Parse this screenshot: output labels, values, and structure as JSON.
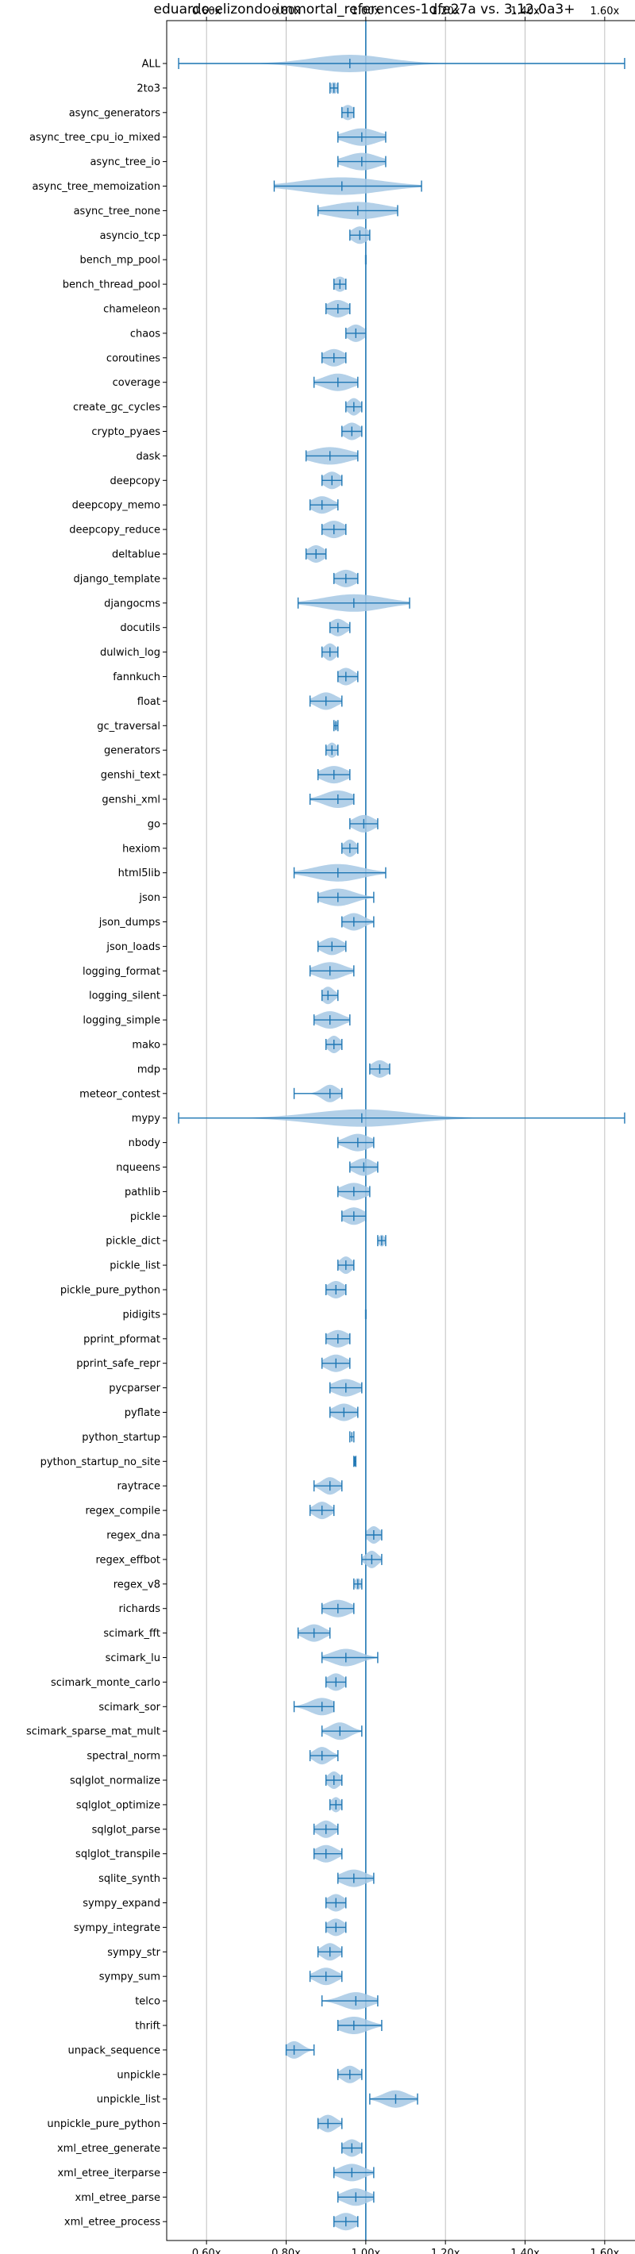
{
  "chart_data": {
    "type": "violin",
    "title": "eduardo-elizondo-immortal_references-1dfe27a vs. 3.12.0a3+",
    "xlabel": "",
    "ylabel": "",
    "xlim": [
      0.5,
      1.69
    ],
    "xticks": [
      0.6,
      0.8,
      1.0,
      1.2,
      1.4,
      1.6
    ],
    "xtick_labels": [
      "0.60x",
      "0.80x",
      "1.00x",
      "1.20x",
      "1.40x",
      "1.60x"
    ],
    "reference_line": 1.0,
    "grid": "x",
    "colors": {
      "violin": "#a6c8e4",
      "line": "#1f77b4"
    },
    "benchmarks": [
      {
        "name": "ALL",
        "min": 0.53,
        "max": 1.65,
        "median": 0.96,
        "spread": 0.05
      },
      {
        "name": "2to3",
        "min": 0.91,
        "max": 0.93,
        "median": 0.92,
        "spread": 0.01
      },
      {
        "name": "async_generators",
        "min": 0.94,
        "max": 0.97,
        "median": 0.955,
        "spread": 0.015
      },
      {
        "name": "async_tree_cpu_io_mixed",
        "min": 0.93,
        "max": 1.05,
        "median": 0.99,
        "spread": 0.04
      },
      {
        "name": "async_tree_io",
        "min": 0.93,
        "max": 1.05,
        "median": 0.99,
        "spread": 0.04
      },
      {
        "name": "async_tree_memoization",
        "min": 0.77,
        "max": 1.14,
        "median": 0.94,
        "spread": 0.1
      },
      {
        "name": "async_tree_none",
        "min": 0.88,
        "max": 1.08,
        "median": 0.98,
        "spread": 0.07
      },
      {
        "name": "asyncio_tcp",
        "min": 0.96,
        "max": 1.01,
        "median": 0.985,
        "spread": 0.02
      },
      {
        "name": "bench_mp_pool",
        "min": 1.0,
        "max": 1.0,
        "median": 1.0,
        "spread": 0.0
      },
      {
        "name": "bench_thread_pool",
        "min": 0.92,
        "max": 0.95,
        "median": 0.935,
        "spread": 0.015
      },
      {
        "name": "chameleon",
        "min": 0.9,
        "max": 0.96,
        "median": 0.93,
        "spread": 0.025
      },
      {
        "name": "chaos",
        "min": 0.95,
        "max": 1.0,
        "median": 0.975,
        "spread": 0.02
      },
      {
        "name": "coroutines",
        "min": 0.89,
        "max": 0.95,
        "median": 0.92,
        "spread": 0.025
      },
      {
        "name": "coverage",
        "min": 0.87,
        "max": 0.98,
        "median": 0.93,
        "spread": 0.035
      },
      {
        "name": "create_gc_cycles",
        "min": 0.95,
        "max": 0.99,
        "median": 0.97,
        "spread": 0.015
      },
      {
        "name": "crypto_pyaes",
        "min": 0.94,
        "max": 0.99,
        "median": 0.965,
        "spread": 0.02
      },
      {
        "name": "dask",
        "min": 0.85,
        "max": 0.98,
        "median": 0.91,
        "spread": 0.05
      },
      {
        "name": "deepcopy",
        "min": 0.89,
        "max": 0.94,
        "median": 0.915,
        "spread": 0.02
      },
      {
        "name": "deepcopy_memo",
        "min": 0.86,
        "max": 0.93,
        "median": 0.89,
        "spread": 0.025
      },
      {
        "name": "deepcopy_reduce",
        "min": 0.89,
        "max": 0.95,
        "median": 0.92,
        "spread": 0.025
      },
      {
        "name": "deltablue",
        "min": 0.85,
        "max": 0.9,
        "median": 0.875,
        "spread": 0.02
      },
      {
        "name": "django_template",
        "min": 0.92,
        "max": 0.98,
        "median": 0.95,
        "spread": 0.025
      },
      {
        "name": "djangocms",
        "min": 0.83,
        "max": 1.11,
        "median": 0.97,
        "spread": 0.075
      },
      {
        "name": "docutils",
        "min": 0.91,
        "max": 0.96,
        "median": 0.93,
        "spread": 0.02
      },
      {
        "name": "dulwich_log",
        "min": 0.89,
        "max": 0.93,
        "median": 0.91,
        "spread": 0.015
      },
      {
        "name": "fannkuch",
        "min": 0.93,
        "max": 0.98,
        "median": 0.95,
        "spread": 0.02
      },
      {
        "name": "float",
        "min": 0.86,
        "max": 0.94,
        "median": 0.9,
        "spread": 0.025
      },
      {
        "name": "gc_traversal",
        "min": 0.92,
        "max": 0.93,
        "median": 0.925,
        "spread": 0.005
      },
      {
        "name": "generators",
        "min": 0.9,
        "max": 0.93,
        "median": 0.915,
        "spread": 0.012
      },
      {
        "name": "genshi_text",
        "min": 0.88,
        "max": 0.96,
        "median": 0.92,
        "spread": 0.03
      },
      {
        "name": "genshi_xml",
        "min": 0.86,
        "max": 0.97,
        "median": 0.93,
        "spread": 0.035
      },
      {
        "name": "go",
        "min": 0.96,
        "max": 1.03,
        "median": 0.995,
        "spread": 0.025
      },
      {
        "name": "hexiom",
        "min": 0.94,
        "max": 0.98,
        "median": 0.96,
        "spread": 0.015
      },
      {
        "name": "html5lib",
        "min": 0.82,
        "max": 1.05,
        "median": 0.93,
        "spread": 0.06
      },
      {
        "name": "json",
        "min": 0.88,
        "max": 1.02,
        "median": 0.93,
        "spread": 0.04
      },
      {
        "name": "json_dumps",
        "min": 0.94,
        "max": 1.02,
        "median": 0.97,
        "spread": 0.025
      },
      {
        "name": "json_loads",
        "min": 0.88,
        "max": 0.95,
        "median": 0.915,
        "spread": 0.025
      },
      {
        "name": "logging_format",
        "min": 0.86,
        "max": 0.97,
        "median": 0.91,
        "spread": 0.035
      },
      {
        "name": "logging_silent",
        "min": 0.89,
        "max": 0.93,
        "median": 0.905,
        "spread": 0.015
      },
      {
        "name": "logging_simple",
        "min": 0.87,
        "max": 0.96,
        "median": 0.91,
        "spread": 0.03
      },
      {
        "name": "mako",
        "min": 0.9,
        "max": 0.94,
        "median": 0.92,
        "spread": 0.015
      },
      {
        "name": "mdp",
        "min": 1.01,
        "max": 1.06,
        "median": 1.035,
        "spread": 0.02
      },
      {
        "name": "meteor_contest",
        "min": 0.82,
        "max": 0.94,
        "median": 0.91,
        "spread": 0.02
      },
      {
        "name": "mypy",
        "min": 0.53,
        "max": 1.65,
        "median": 0.99,
        "spread": 0.12
      },
      {
        "name": "nbody",
        "min": 0.93,
        "max": 1.02,
        "median": 0.98,
        "spread": 0.03
      },
      {
        "name": "nqueens",
        "min": 0.96,
        "max": 1.03,
        "median": 0.995,
        "spread": 0.025
      },
      {
        "name": "pathlib",
        "min": 0.93,
        "max": 1.01,
        "median": 0.97,
        "spread": 0.03
      },
      {
        "name": "pickle",
        "min": 0.94,
        "max": 1.0,
        "median": 0.97,
        "spread": 0.025
      },
      {
        "name": "pickle_dict",
        "min": 1.03,
        "max": 1.05,
        "median": 1.04,
        "spread": 0.008
      },
      {
        "name": "pickle_list",
        "min": 0.93,
        "max": 0.97,
        "median": 0.95,
        "spread": 0.015
      },
      {
        "name": "pickle_pure_python",
        "min": 0.9,
        "max": 0.95,
        "median": 0.925,
        "spread": 0.02
      },
      {
        "name": "pidigits",
        "min": 1.0,
        "max": 1.0,
        "median": 1.0,
        "spread": 0.0
      },
      {
        "name": "pprint_pformat",
        "min": 0.9,
        "max": 0.96,
        "median": 0.93,
        "spread": 0.025
      },
      {
        "name": "pprint_safe_repr",
        "min": 0.89,
        "max": 0.96,
        "median": 0.925,
        "spread": 0.025
      },
      {
        "name": "pycparser",
        "min": 0.91,
        "max": 0.99,
        "median": 0.95,
        "spread": 0.03
      },
      {
        "name": "pyflate",
        "min": 0.91,
        "max": 0.98,
        "median": 0.945,
        "spread": 0.025
      },
      {
        "name": "python_startup",
        "min": 0.96,
        "max": 0.97,
        "median": 0.965,
        "spread": 0.0
      },
      {
        "name": "python_startup_no_site",
        "min": 0.97,
        "max": 0.975,
        "median": 0.972,
        "spread": 0.0
      },
      {
        "name": "raytrace",
        "min": 0.87,
        "max": 0.94,
        "median": 0.91,
        "spread": 0.02
      },
      {
        "name": "regex_compile",
        "min": 0.86,
        "max": 0.92,
        "median": 0.89,
        "spread": 0.02
      },
      {
        "name": "regex_dna",
        "min": 1.0,
        "max": 1.04,
        "median": 1.02,
        "spread": 0.015
      },
      {
        "name": "regex_effbot",
        "min": 0.99,
        "max": 1.04,
        "median": 1.015,
        "spread": 0.015
      },
      {
        "name": "regex_v8",
        "min": 0.97,
        "max": 0.99,
        "median": 0.98,
        "spread": 0.008
      },
      {
        "name": "richards",
        "min": 0.89,
        "max": 0.97,
        "median": 0.93,
        "spread": 0.03
      },
      {
        "name": "scimark_fft",
        "min": 0.83,
        "max": 0.91,
        "median": 0.87,
        "spread": 0.025
      },
      {
        "name": "scimark_lu",
        "min": 0.89,
        "max": 1.03,
        "median": 0.95,
        "spread": 0.035
      },
      {
        "name": "scimark_monte_carlo",
        "min": 0.9,
        "max": 0.95,
        "median": 0.925,
        "spread": 0.02
      },
      {
        "name": "scimark_sor",
        "min": 0.82,
        "max": 0.92,
        "median": 0.89,
        "spread": 0.03
      },
      {
        "name": "scimark_sparse_mat_mult",
        "min": 0.89,
        "max": 0.99,
        "median": 0.935,
        "spread": 0.025
      },
      {
        "name": "spectral_norm",
        "min": 0.86,
        "max": 0.93,
        "median": 0.89,
        "spread": 0.02
      },
      {
        "name": "sqlglot_normalize",
        "min": 0.9,
        "max": 0.94,
        "median": 0.92,
        "spread": 0.015
      },
      {
        "name": "sqlglot_optimize",
        "min": 0.91,
        "max": 0.94,
        "median": 0.925,
        "spread": 0.012
      },
      {
        "name": "sqlglot_parse",
        "min": 0.87,
        "max": 0.93,
        "median": 0.9,
        "spread": 0.02
      },
      {
        "name": "sqlglot_transpile",
        "min": 0.87,
        "max": 0.94,
        "median": 0.9,
        "spread": 0.025
      },
      {
        "name": "sqlite_synth",
        "min": 0.93,
        "max": 1.02,
        "median": 0.97,
        "spread": 0.03
      },
      {
        "name": "sympy_expand",
        "min": 0.9,
        "max": 0.95,
        "median": 0.925,
        "spread": 0.02
      },
      {
        "name": "sympy_integrate",
        "min": 0.9,
        "max": 0.95,
        "median": 0.925,
        "spread": 0.02
      },
      {
        "name": "sympy_str",
        "min": 0.88,
        "max": 0.94,
        "median": 0.91,
        "spread": 0.02
      },
      {
        "name": "sympy_sum",
        "min": 0.86,
        "max": 0.94,
        "median": 0.9,
        "spread": 0.025
      },
      {
        "name": "telco",
        "min": 0.89,
        "max": 1.03,
        "median": 0.975,
        "spread": 0.035
      },
      {
        "name": "thrift",
        "min": 0.93,
        "max": 1.04,
        "median": 0.97,
        "spread": 0.035
      },
      {
        "name": "unpack_sequence",
        "min": 0.8,
        "max": 0.87,
        "median": 0.82,
        "spread": 0.02
      },
      {
        "name": "unpickle",
        "min": 0.93,
        "max": 0.99,
        "median": 0.96,
        "spread": 0.02
      },
      {
        "name": "unpickle_list",
        "min": 1.01,
        "max": 1.13,
        "median": 1.075,
        "spread": 0.03
      },
      {
        "name": "unpickle_pure_python",
        "min": 0.88,
        "max": 0.94,
        "median": 0.905,
        "spread": 0.02
      },
      {
        "name": "xml_etree_generate",
        "min": 0.94,
        "max": 0.99,
        "median": 0.965,
        "spread": 0.02
      },
      {
        "name": "xml_etree_iterparse",
        "min": 0.92,
        "max": 1.02,
        "median": 0.965,
        "spread": 0.03
      },
      {
        "name": "xml_etree_parse",
        "min": 0.93,
        "max": 1.02,
        "median": 0.975,
        "spread": 0.03
      },
      {
        "name": "xml_etree_process",
        "min": 0.92,
        "max": 0.98,
        "median": 0.95,
        "spread": 0.025
      }
    ]
  }
}
